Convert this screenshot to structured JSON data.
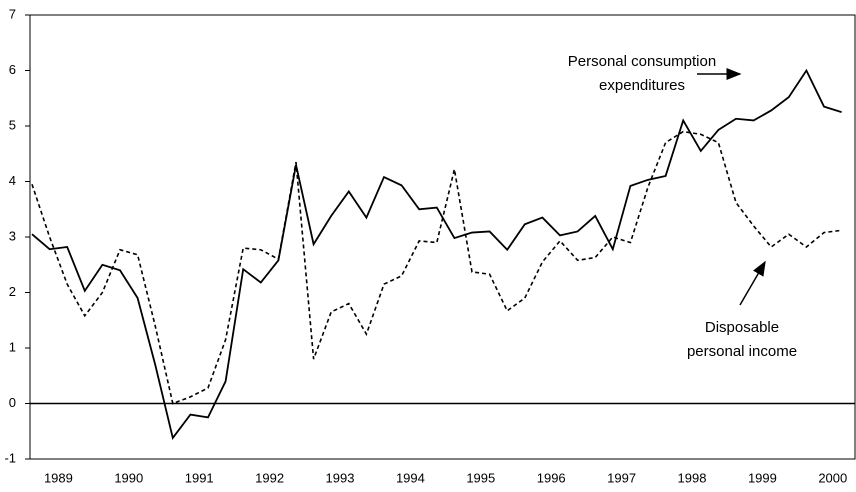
{
  "chart_data": {
    "type": "line",
    "categories": [
      null,
      null,
      "1989",
      null,
      null,
      null,
      "1990",
      null,
      null,
      null,
      "1991",
      null,
      null,
      null,
      "1992",
      null,
      null,
      null,
      "1993",
      null,
      null,
      null,
      "1994",
      null,
      null,
      null,
      "1995",
      null,
      null,
      null,
      "1996",
      null,
      null,
      null,
      "1997",
      null,
      null,
      null,
      "1998",
      null,
      null,
      null,
      "1999",
      null,
      null,
      null,
      "2000"
    ],
    "series": [
      {
        "color": "#000000",
        "style": "solid",
        "values": [
          3.05,
          2.78,
          2.82,
          2.03,
          2.5,
          2.4,
          1.9,
          0.7,
          -0.62,
          -0.2,
          -0.25,
          0.4,
          2.42,
          2.18,
          2.58,
          4.3,
          2.87,
          3.38,
          3.82,
          3.35,
          4.08,
          3.93,
          3.5,
          3.53,
          2.98,
          3.08,
          3.1,
          2.77,
          3.23,
          3.35,
          3.03,
          3.1,
          3.38,
          2.78,
          3.92,
          4.03,
          4.1,
          5.1,
          4.55,
          4.93,
          5.13,
          5.1,
          5.28,
          5.52,
          6.0,
          5.35,
          5.25
        ]
      },
      {
        "color": "#000000",
        "style": "dashed",
        "values": [
          3.95,
          3.0,
          2.15,
          1.58,
          2.0,
          2.77,
          2.68,
          1.4,
          0.0,
          0.12,
          0.28,
          1.15,
          2.8,
          2.77,
          2.6,
          4.35,
          0.8,
          1.65,
          1.8,
          1.25,
          2.15,
          2.3,
          2.93,
          2.9,
          4.22,
          2.37,
          2.33,
          1.67,
          1.9,
          2.55,
          2.93,
          2.58,
          2.63,
          3.0,
          2.9,
          3.9,
          4.7,
          4.9,
          4.85,
          4.7,
          3.62,
          3.2,
          2.82,
          3.05,
          2.82,
          3.08,
          3.12
        ]
      }
    ],
    "annotations": [
      {
        "lines": [
          "Personal consumption",
          "expenditures"
        ]
      },
      {
        "lines": [
          "Disposable",
          "personal income"
        ]
      }
    ],
    "ylim": [
      -1,
      7
    ],
    "yticks": [
      -1,
      0,
      1,
      2,
      3,
      4,
      5,
      6,
      7
    ],
    "zero_line": true
  }
}
